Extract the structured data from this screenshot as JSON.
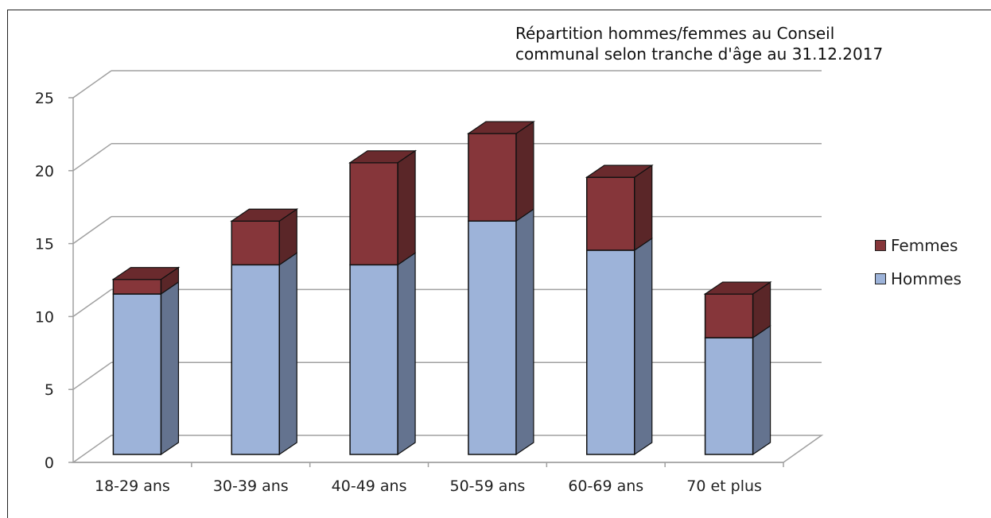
{
  "chart_data": {
    "type": "bar",
    "stacked": true,
    "three_d": true,
    "title": "Répartition hommes/femmes au Conseil\ncommunal selon tranche d'âge au 31.12.2017",
    "categories": [
      "18-29 ans",
      "30-39 ans",
      "40-49 ans",
      "50-59 ans",
      "60-69 ans",
      "70 et plus"
    ],
    "series": [
      {
        "name": "Hommes",
        "values": [
          11,
          13,
          13,
          16,
          14,
          8
        ],
        "color": "#9db3d9"
      },
      {
        "name": "Femmes",
        "values": [
          1,
          3,
          7,
          6,
          5,
          3
        ],
        "color": "#86363a"
      }
    ],
    "ylim": [
      0,
      25
    ],
    "yticks": [
      "0",
      "5",
      "10",
      "15",
      "20",
      "25"
    ],
    "grid": true,
    "legend_position": "right"
  }
}
